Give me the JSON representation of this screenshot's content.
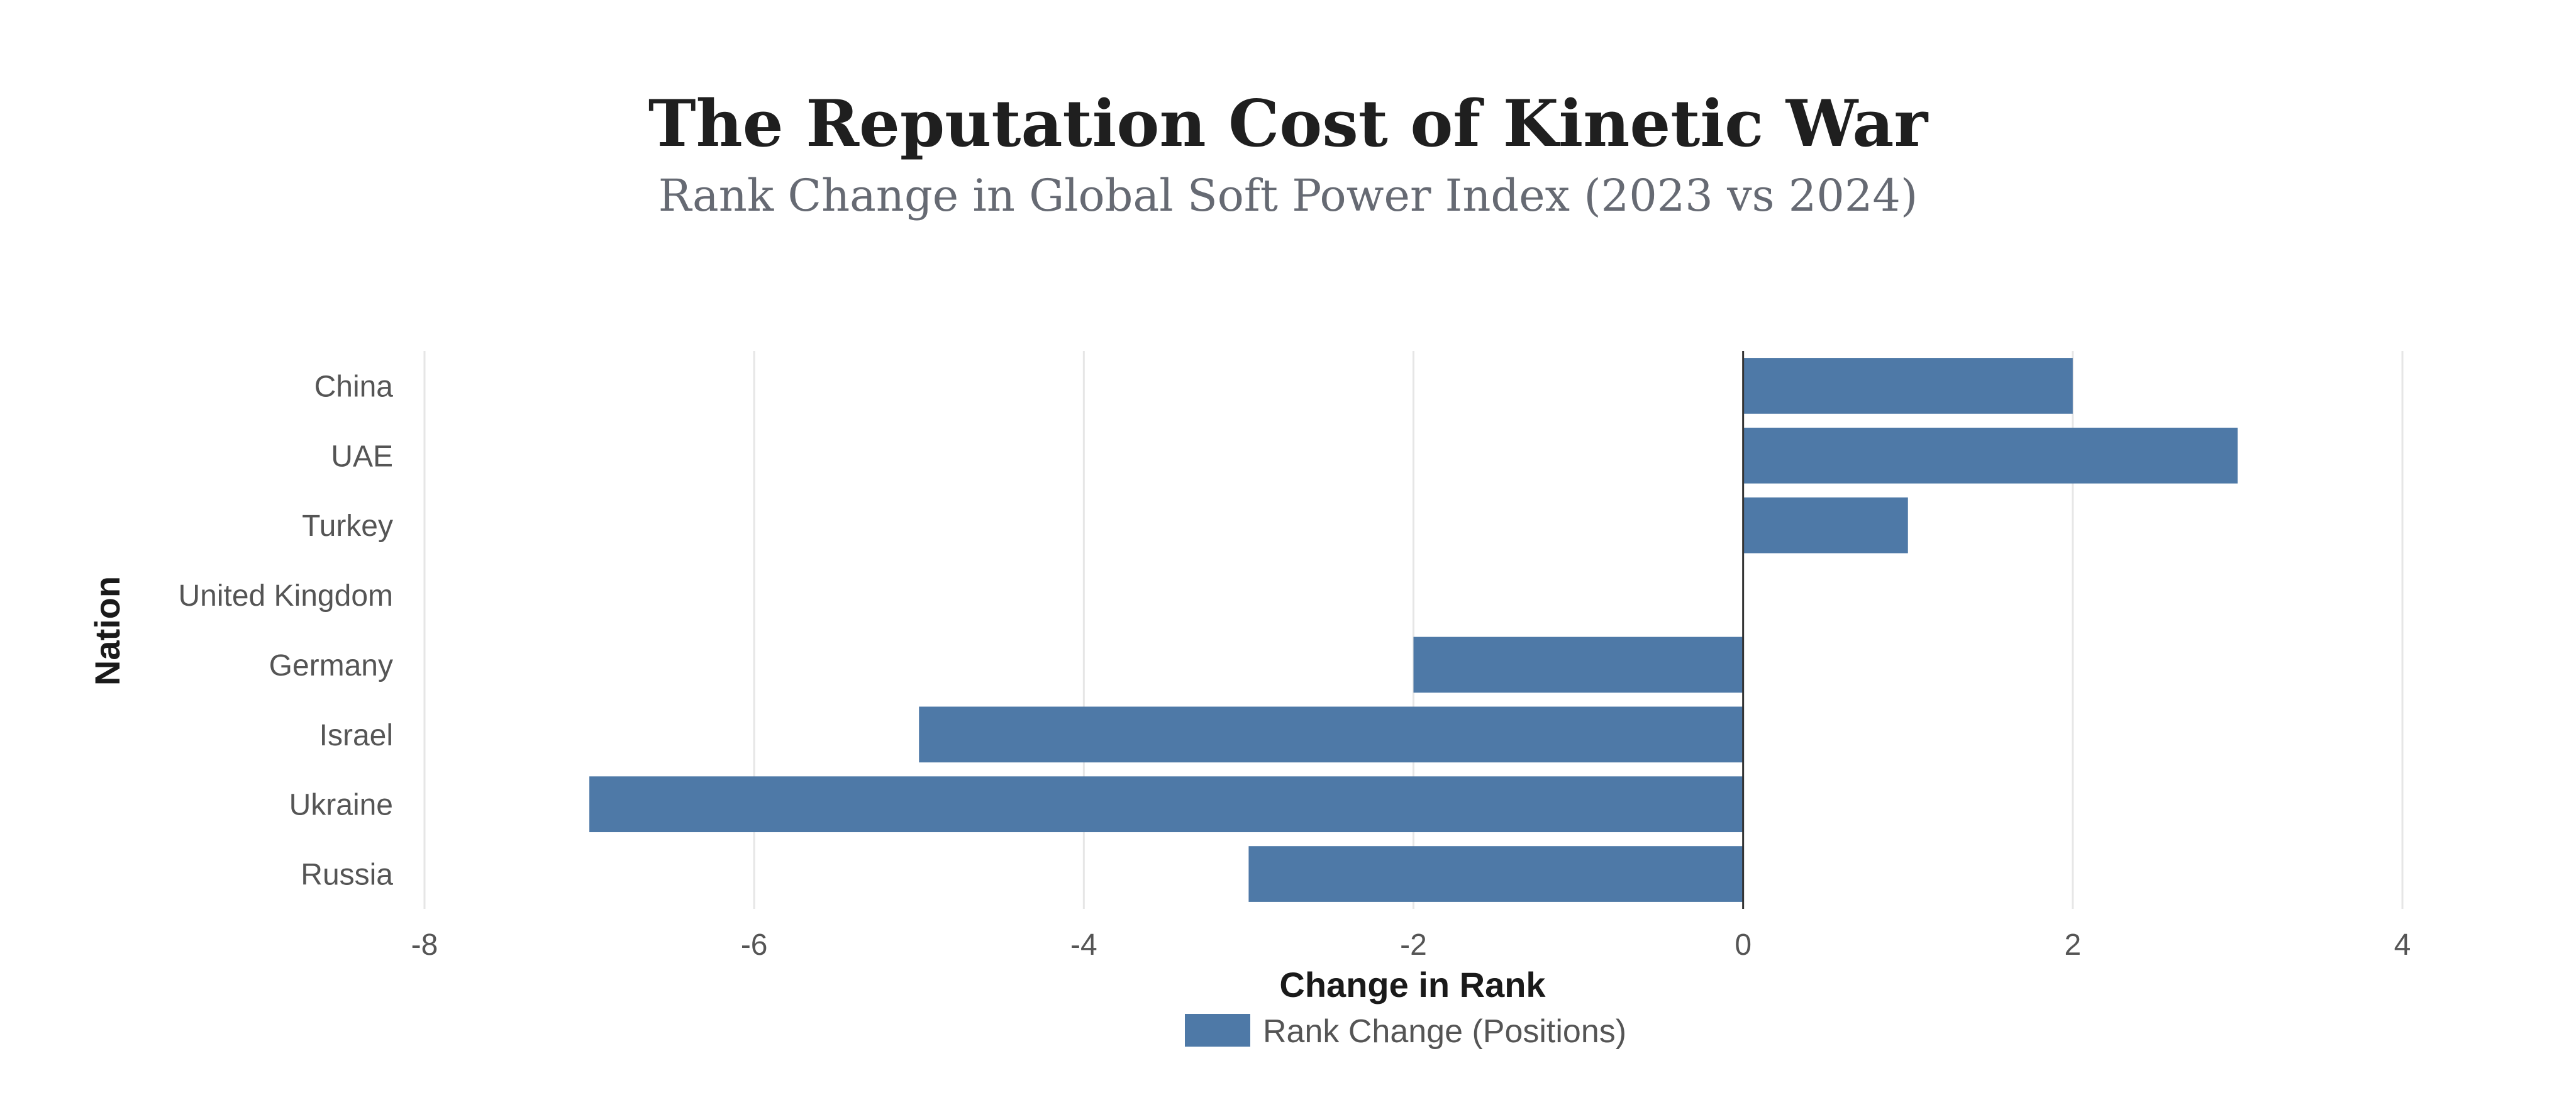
{
  "chart_data": {
    "type": "bar",
    "orientation": "horizontal",
    "title": "The Reputation Cost of Kinetic War",
    "subtitle": "Rank Change in Global Soft Power Index (2023 vs 2024)",
    "xlabel": "Change in Rank",
    "ylabel": "Nation",
    "xlim": [
      -8,
      4
    ],
    "xticks": [
      -8,
      -6,
      -4,
      -2,
      0,
      2,
      4
    ],
    "grid": true,
    "legend_position": "bottom-center",
    "colors": {
      "bar": "#4e79a7"
    },
    "categories": [
      "China",
      "UAE",
      "Turkey",
      "United Kingdom",
      "Germany",
      "Israel",
      "Ukraine",
      "Russia"
    ],
    "series": [
      {
        "name": "Rank Change (Positions)",
        "values": [
          2,
          3,
          1,
          0,
          -2,
          -5,
          -7,
          -3
        ]
      }
    ]
  }
}
